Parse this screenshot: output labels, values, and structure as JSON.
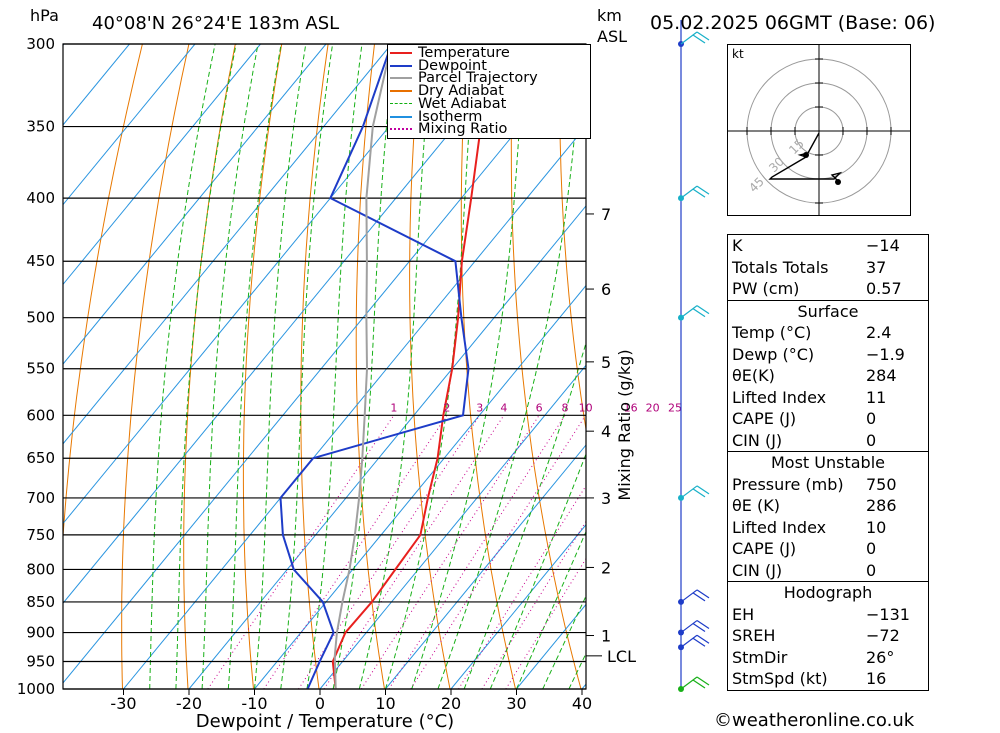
{
  "header": {
    "pressure_unit": "hPa",
    "location": "40°08'N  26°24'E  183m  ASL",
    "km_label": "km",
    "asl_label": "ASL",
    "datetime": "05.02.2025  06GMT  (Base: 06)"
  },
  "chart_data": {
    "type": "line",
    "title": "40°08'N  26°24'E  183m  ASL",
    "xlabel": "Dewpoint / Temperature (°C)",
    "ylabel": "hPa",
    "xlim": [
      -40,
      40
    ],
    "ylim": [
      1000,
      300
    ],
    "x_ticks": [
      -30,
      -20,
      -10,
      0,
      10,
      20,
      30,
      40
    ],
    "pressure_levels": [
      300,
      350,
      400,
      450,
      500,
      550,
      600,
      650,
      700,
      750,
      800,
      850,
      900,
      950,
      1000
    ],
    "height_km_axis": {
      "label": "km ASL",
      "ticks": [
        {
          "km": 1,
          "p": 905
        },
        {
          "km": 2,
          "p": 797
        },
        {
          "km": 3,
          "p": 700
        },
        {
          "km": 4,
          "p": 618
        },
        {
          "km": 5,
          "p": 543
        },
        {
          "km": 6,
          "p": 474
        },
        {
          "km": 7,
          "p": 412
        }
      ],
      "lcl_label": "LCL",
      "lcl_p": 940
    },
    "mixing_ratio_axis": {
      "label": "Mixing Ratio (g/kg)",
      "values": [
        1,
        2,
        3,
        4,
        6,
        8,
        10,
        16,
        20,
        25
      ]
    },
    "legend": {
      "placement": "top-right",
      "entries": [
        {
          "name": "Temperature",
          "color": "#e8201e",
          "style": "solid"
        },
        {
          "name": "Dewpoint",
          "color": "#1e3cc8",
          "style": "solid"
        },
        {
          "name": "Parcel Trajectory",
          "color": "#a0a0a0",
          "style": "solid"
        },
        {
          "name": "Dry Adiabat",
          "color": "#e87000",
          "style": "solid"
        },
        {
          "name": "Wet Adiabat",
          "color": "#10b010",
          "style": "dashed"
        },
        {
          "name": "Isotherm",
          "color": "#2090e0",
          "style": "solid"
        },
        {
          "name": "Mixing Ratio",
          "color": "#c000a0",
          "style": "dotted"
        }
      ]
    },
    "series": [
      {
        "name": "Temperature",
        "color": "#e8201e",
        "points": [
          [
            1000,
            2.4
          ],
          [
            950,
            -1.5
          ],
          [
            900,
            -3.2
          ],
          [
            850,
            -3.0
          ],
          [
            800,
            -3.5
          ],
          [
            750,
            -4.0
          ],
          [
            700,
            -7.5
          ],
          [
            650,
            -11.0
          ],
          [
            600,
            -15.5
          ],
          [
            550,
            -20.0
          ],
          [
            500,
            -25.5
          ],
          [
            450,
            -32.0
          ],
          [
            400,
            -38.5
          ],
          [
            350,
            -46.0
          ],
          [
            300,
            -53.0
          ]
        ]
      },
      {
        "name": "Dewpoint",
        "color": "#1e3cc8",
        "points": [
          [
            1000,
            -1.9
          ],
          [
            950,
            -3.5
          ],
          [
            900,
            -5.0
          ],
          [
            850,
            -10.5
          ],
          [
            800,
            -19.0
          ],
          [
            750,
            -25.0
          ],
          [
            700,
            -30.0
          ],
          [
            650,
            -30.0
          ],
          [
            600,
            -12.5
          ],
          [
            550,
            -17.5
          ],
          [
            500,
            -25.0
          ],
          [
            450,
            -33.0
          ],
          [
            400,
            -60.0
          ],
          [
            350,
            -64.0
          ],
          [
            300,
            -70.0
          ]
        ]
      },
      {
        "name": "Parcel Trajectory",
        "color": "#a0a0a0",
        "points": [
          [
            1000,
            2.4
          ],
          [
            940,
            -1.9
          ],
          [
            900,
            -4.5
          ],
          [
            850,
            -7.5
          ],
          [
            800,
            -10.5
          ],
          [
            750,
            -14.0
          ],
          [
            700,
            -18.0
          ],
          [
            650,
            -22.5
          ],
          [
            600,
            -27.5
          ],
          [
            550,
            -33.0
          ],
          [
            500,
            -39.5
          ],
          [
            450,
            -46.5
          ],
          [
            400,
            -54.5
          ],
          [
            350,
            -62.5
          ],
          [
            300,
            -70.0
          ]
        ]
      }
    ],
    "wind_barbs_p": [
      300,
      400,
      500,
      700,
      850,
      900,
      925,
      1000
    ]
  },
  "hodograph": {
    "unit_label": "kt",
    "ring_labels": [
      "15",
      "30",
      "45"
    ]
  },
  "indices": {
    "general": [
      {
        "label": "K",
        "value": "−14"
      },
      {
        "label": "Totals Totals",
        "value": "37"
      },
      {
        "label": "PW (cm)",
        "value": "0.57"
      }
    ],
    "surface": {
      "title": "Surface",
      "rows": [
        {
          "label": "Temp (°C)",
          "value": "2.4"
        },
        {
          "label": "Dewp (°C)",
          "value": "−1.9"
        },
        {
          "label": "θE(K)",
          "value": "284"
        },
        {
          "label": "Lifted Index",
          "value": "11"
        },
        {
          "label": "CAPE (J)",
          "value": "0"
        },
        {
          "label": "CIN (J)",
          "value": "0"
        }
      ]
    },
    "most_unstable": {
      "title": "Most Unstable",
      "rows": [
        {
          "label": "Pressure (mb)",
          "value": "750"
        },
        {
          "label": "θE (K)",
          "value": "286"
        },
        {
          "label": "Lifted Index",
          "value": "10"
        },
        {
          "label": "CAPE (J)",
          "value": "0"
        },
        {
          "label": "CIN (J)",
          "value": "0"
        }
      ]
    },
    "hodograph": {
      "title": "Hodograph",
      "rows": [
        {
          "label": "EH",
          "value": "−131"
        },
        {
          "label": "SREH",
          "value": "−72"
        },
        {
          "label": "StmDir",
          "value": "26°"
        },
        {
          "label": "StmSpd (kt)",
          "value": "16"
        }
      ]
    }
  },
  "footer": {
    "copyright": "©weatheronline.co.uk"
  }
}
